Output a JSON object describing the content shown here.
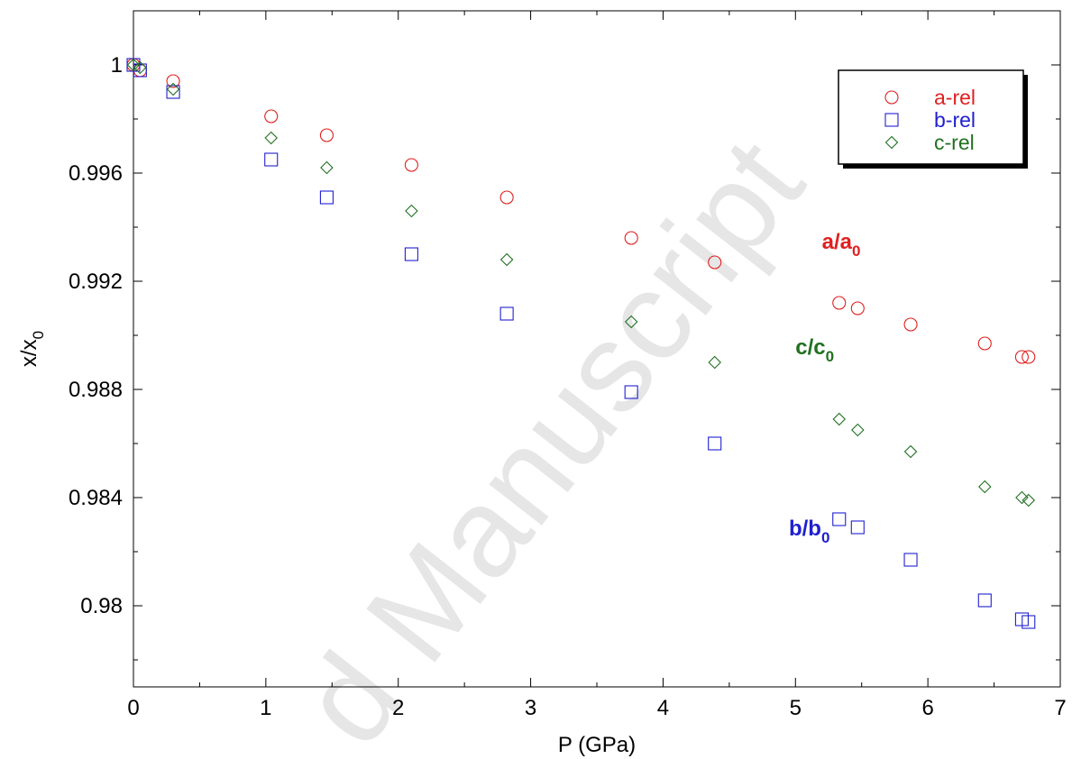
{
  "chart_data": {
    "type": "scatter",
    "xlabel": "P (GPa)",
    "ylabel": "x/x",
    "ylabel_sub": "0",
    "xlim": [
      0,
      7
    ],
    "ylim": [
      0.977,
      1.002
    ],
    "xticks": [
      0,
      1,
      2,
      3,
      4,
      5,
      6,
      7
    ],
    "yticks": [
      0.98,
      0.984,
      0.988,
      0.992,
      0.996,
      1
    ],
    "ytick_labels": [
      "0.98",
      "0.984",
      "0.988",
      "0.992",
      "0.996",
      "1"
    ],
    "grid": false,
    "legend_position": "top-right",
    "series": [
      {
        "name": "a-rel",
        "color": "#e02020",
        "marker": "circle",
        "x": [
          0,
          0.05,
          0.3,
          1.04,
          1.46,
          2.1,
          2.82,
          3.76,
          4.39,
          5.33,
          5.47,
          5.87,
          6.43,
          6.71,
          6.76
        ],
        "y": [
          1.0,
          0.9998,
          0.9994,
          0.9981,
          0.9974,
          0.9963,
          0.9951,
          0.9936,
          0.9927,
          0.9912,
          0.991,
          0.9904,
          0.9897,
          0.9892,
          0.9892
        ]
      },
      {
        "name": "b-rel",
        "color": "#2020d0",
        "marker": "square",
        "x": [
          0,
          0.05,
          0.3,
          1.04,
          1.46,
          2.1,
          2.82,
          3.76,
          4.39,
          5.33,
          5.47,
          5.87,
          6.43,
          6.71,
          6.76
        ],
        "y": [
          1.0,
          0.9998,
          0.999,
          0.9965,
          0.9951,
          0.993,
          0.9908,
          0.9879,
          0.986,
          0.9832,
          0.9829,
          0.9817,
          0.9802,
          0.9795,
          0.9794
        ]
      },
      {
        "name": "c-rel",
        "color": "#207020",
        "marker": "diamond",
        "x": [
          0,
          0.05,
          0.3,
          1.04,
          1.46,
          2.1,
          2.82,
          3.76,
          4.39,
          5.33,
          5.47,
          5.87,
          6.43,
          6.71,
          6.76
        ],
        "y": [
          1.0,
          0.9999,
          0.9991,
          0.9973,
          0.9962,
          0.9946,
          0.9928,
          0.9905,
          0.989,
          0.9869,
          0.9865,
          0.9857,
          0.9844,
          0.984,
          0.9839
        ]
      }
    ],
    "annotations": [
      {
        "main": "a/a",
        "sub": "0",
        "color": "#e02020",
        "x": 5.2,
        "y": 0.9932
      },
      {
        "main": "c/c",
        "sub": "0",
        "color": "#207020",
        "x": 5.0,
        "y": 0.9893
      },
      {
        "main": "b/b",
        "sub": "0",
        "color": "#2020d0",
        "x": 4.95,
        "y": 0.9826
      }
    ]
  },
  "watermark": "d Manuscript"
}
